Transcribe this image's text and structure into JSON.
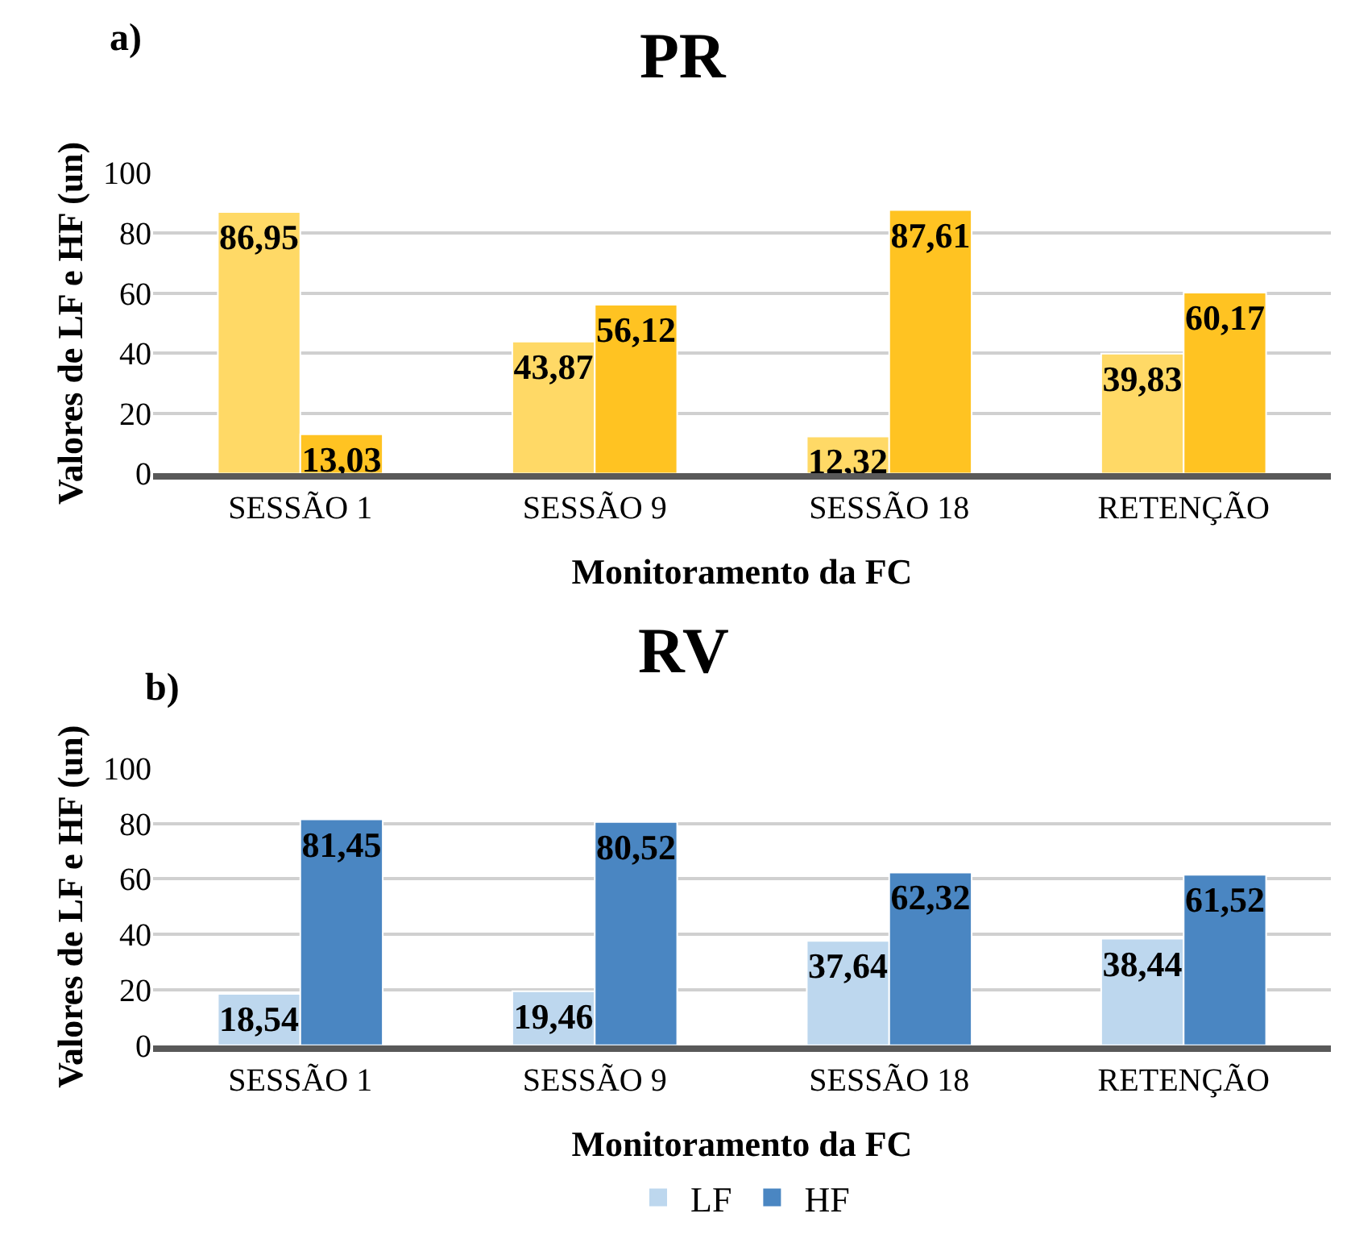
{
  "chart_data": [
    {
      "type": "bar",
      "title": "PR",
      "xlabel": "Monitoramento da FC",
      "ylabel": "Valores de LF e HF (un)",
      "annotations": [
        "a)"
      ],
      "categories": [
        "SESSÃO 1",
        "SESSÃO 9",
        "SESSÃO 18",
        "RETENÇÃO"
      ],
      "series": [
        {
          "color": "#ffd966",
          "values": [
            86.95,
            43.87,
            12.32,
            39.83
          ],
          "value_labels": [
            "86,95",
            "43,87",
            "12,32",
            "39,83"
          ]
        },
        {
          "color": "#ffc322",
          "values": [
            13.03,
            56.12,
            87.61,
            60.17
          ],
          "value_labels": [
            "13,03",
            "56,12",
            "87,61",
            "60,17"
          ]
        }
      ],
      "ylim": [
        0,
        100
      ],
      "yticks": [
        0,
        20,
        40,
        60,
        80,
        100
      ],
      "grid": "y",
      "legend": false
    },
    {
      "type": "bar",
      "title": "RV",
      "xlabel": "Monitoramento da FC",
      "ylabel": "Valores de LF e HF (un)",
      "annotations": [
        "b)"
      ],
      "categories": [
        "SESSÃO 1",
        "SESSÃO 9",
        "SESSÃO 18",
        "RETENÇÃO"
      ],
      "series": [
        {
          "name": "LF",
          "color": "#bdd7ee",
          "values": [
            18.54,
            19.46,
            37.64,
            38.44
          ],
          "value_labels": [
            "18,54",
            "19,46",
            "37,64",
            "38,44"
          ]
        },
        {
          "name": "HF",
          "color": "#4a86c2",
          "values": [
            81.45,
            80.52,
            62.32,
            61.52
          ],
          "value_labels": [
            "81,45",
            "80,52",
            "62,32",
            "61,52"
          ]
        }
      ],
      "ylim": [
        0,
        100
      ],
      "yticks": [
        0,
        20,
        40,
        60,
        80,
        100
      ],
      "grid": "y",
      "legend": "bottom"
    }
  ]
}
